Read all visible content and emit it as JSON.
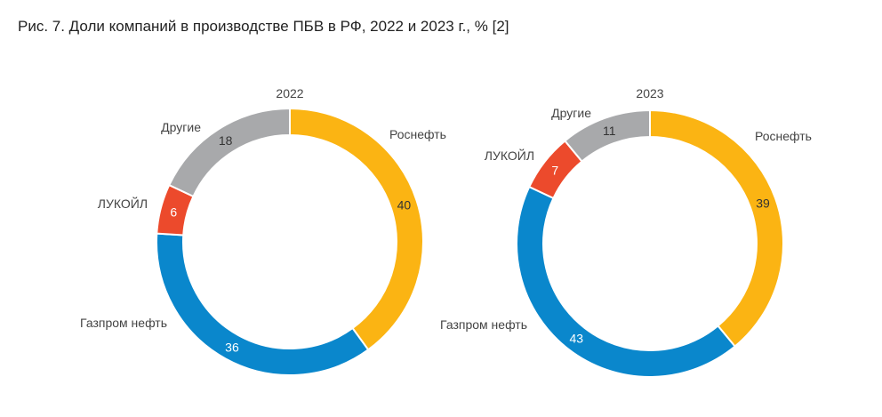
{
  "title": "Рис. 7. Доли компаний в производстве ПБВ в РФ, 2022 и 2023 г., % [2]",
  "colors": {
    "Роснефть": "#fbb413",
    "Газпром нефть": "#0a87cc",
    "ЛУКОЙЛ": "#ec4a2c",
    "Другие": "#a8a9ab"
  },
  "chart_data": [
    {
      "type": "pie",
      "title": "2022",
      "labels": [
        "Роснефть",
        "Газпром нефть",
        "ЛУКОЙЛ",
        "Другие"
      ],
      "values": [
        40,
        36,
        6,
        18
      ]
    },
    {
      "type": "pie",
      "title": "2023",
      "labels": [
        "Роснефть",
        "Газпром нефть",
        "ЛУКОЙЛ",
        "Другие"
      ],
      "values": [
        39,
        43,
        7,
        11
      ]
    }
  ]
}
